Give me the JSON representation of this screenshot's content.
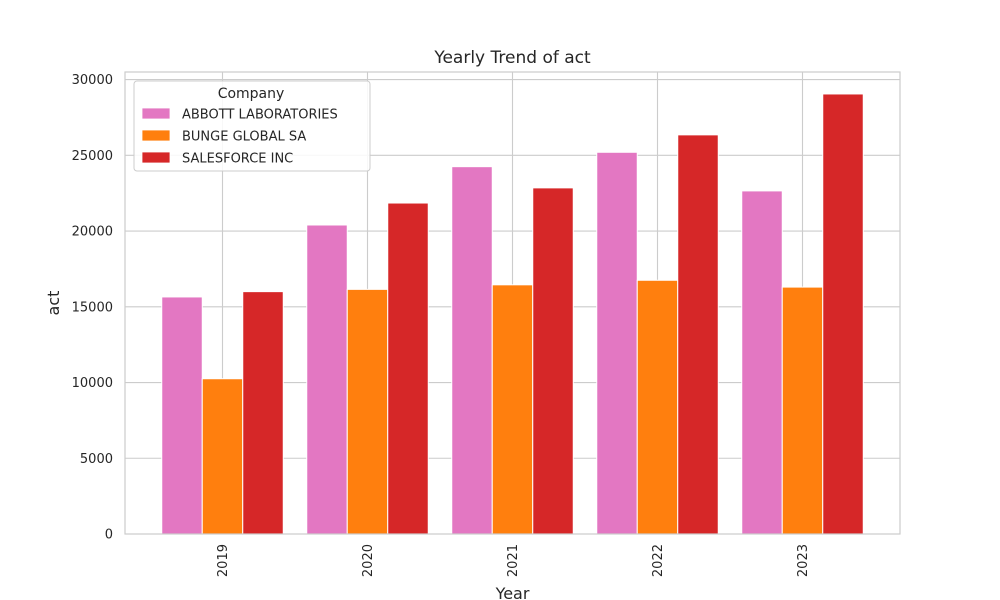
{
  "chart_data": {
    "type": "bar",
    "title": "Yearly Trend of act",
    "xlabel": "Year",
    "ylabel": "act",
    "categories": [
      "2019",
      "2020",
      "2021",
      "2022",
      "2023"
    ],
    "ylim": [
      0,
      30500
    ],
    "yticks": [
      0,
      5000,
      10000,
      15000,
      20000,
      25000,
      30000
    ],
    "grid": true,
    "legend": {
      "title": "Company",
      "placement": "top-left"
    },
    "series": [
      {
        "name": "ABBOTT LABORATORIES",
        "color": "#e377c2",
        "values": [
          15650,
          20400,
          24250,
          25200,
          22650
        ]
      },
      {
        "name": "BUNGE GLOBAL SA",
        "color": "#ff7f0e",
        "values": [
          10250,
          16150,
          16450,
          16750,
          16300
        ]
      },
      {
        "name": "SALESFORCE INC",
        "color": "#d62728",
        "values": [
          16000,
          21850,
          22850,
          26350,
          29050
        ]
      }
    ]
  }
}
